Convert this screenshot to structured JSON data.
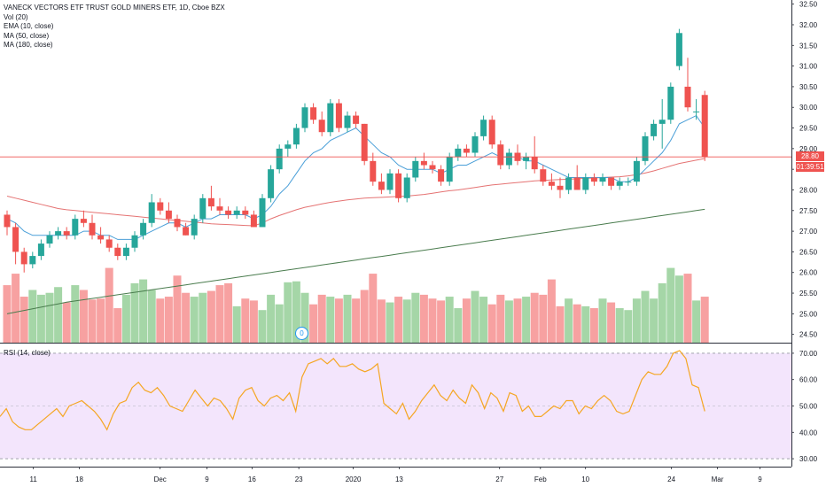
{
  "legend": {
    "title": "VANECK VECTORS ETF TRUST GOLD MINERS ETF, 1D, Cboe BZX",
    "vol": "Vol (20)",
    "ema": "EMA (10, close)",
    "ma50": "MA (50, close)",
    "ma180": "MA (180, close)",
    "rsi": "RSI (14, close)"
  },
  "price_tag": {
    "last": "28.80",
    "countdown": "01:39:51"
  },
  "volume_badge": "0",
  "colors": {
    "up": "#26a69a",
    "down": "#ef5350",
    "vol_up": "#a5d6a7",
    "vol_down": "#f7a1a1",
    "ema": "#4a9fd8",
    "ma50": "#e57373",
    "ma180": "#4a7c4e",
    "rsi_line": "#f5a623",
    "rsi_band": "#f3e5fc"
  },
  "chart_data": [
    {
      "type": "candlestick",
      "title": "VANECK VECTORS ETF TRUST GOLD MINERS ETF, 1D, Cboe BZX",
      "y_axis_ticks": [
        "24.50",
        "25.00",
        "25.50",
        "26.00",
        "26.50",
        "27.00",
        "27.50",
        "28.00",
        "28.50",
        "29.00",
        "29.50",
        "30.00",
        "30.50",
        "31.00",
        "31.50",
        "32.00",
        "32.50"
      ],
      "ylim": [
        24.3,
        32.6
      ],
      "x_axis_ticks": [
        "11",
        "18",
        "Dec",
        "9",
        "16",
        "23",
        "2020",
        "13",
        "27",
        "Feb",
        "10",
        "24",
        "Mar",
        "9"
      ],
      "candles": [
        {
          "o": 27.4,
          "h": 27.5,
          "l": 26.9,
          "c": 27.1
        },
        {
          "o": 27.1,
          "h": 27.2,
          "l": 26.2,
          "c": 26.5
        },
        {
          "o": 26.5,
          "h": 26.6,
          "l": 26.0,
          "c": 26.2
        },
        {
          "o": 26.2,
          "h": 26.5,
          "l": 26.1,
          "c": 26.4
        },
        {
          "o": 26.4,
          "h": 26.8,
          "l": 26.3,
          "c": 26.7
        },
        {
          "o": 26.7,
          "h": 27.0,
          "l": 26.6,
          "c": 26.9
        },
        {
          "o": 26.9,
          "h": 27.1,
          "l": 26.8,
          "c": 27.0
        },
        {
          "o": 27.0,
          "h": 27.1,
          "l": 26.8,
          "c": 26.9
        },
        {
          "o": 26.9,
          "h": 27.4,
          "l": 26.8,
          "c": 27.3
        },
        {
          "o": 27.3,
          "h": 27.5,
          "l": 27.1,
          "c": 27.2
        },
        {
          "o": 27.2,
          "h": 27.4,
          "l": 26.8,
          "c": 26.9
        },
        {
          "o": 26.9,
          "h": 27.1,
          "l": 26.7,
          "c": 26.8
        },
        {
          "o": 26.8,
          "h": 26.9,
          "l": 26.5,
          "c": 26.6
        },
        {
          "o": 26.6,
          "h": 26.7,
          "l": 26.3,
          "c": 26.4
        },
        {
          "o": 26.4,
          "h": 26.7,
          "l": 26.3,
          "c": 26.6
        },
        {
          "o": 26.6,
          "h": 27.0,
          "l": 26.5,
          "c": 26.9
        },
        {
          "o": 26.9,
          "h": 27.3,
          "l": 26.8,
          "c": 27.2
        },
        {
          "o": 27.2,
          "h": 27.9,
          "l": 27.1,
          "c": 27.7
        },
        {
          "o": 27.7,
          "h": 27.8,
          "l": 27.4,
          "c": 27.5
        },
        {
          "o": 27.5,
          "h": 27.7,
          "l": 27.2,
          "c": 27.3
        },
        {
          "o": 27.3,
          "h": 27.4,
          "l": 27.0,
          "c": 27.1
        },
        {
          "o": 27.1,
          "h": 27.2,
          "l": 26.9,
          "c": 26.9
        },
        {
          "o": 26.9,
          "h": 27.4,
          "l": 26.8,
          "c": 27.3
        },
        {
          "o": 27.3,
          "h": 27.9,
          "l": 27.2,
          "c": 27.8
        },
        {
          "o": 27.8,
          "h": 28.1,
          "l": 27.5,
          "c": 27.6
        },
        {
          "o": 27.6,
          "h": 27.8,
          "l": 27.4,
          "c": 27.5
        },
        {
          "o": 27.5,
          "h": 27.6,
          "l": 27.3,
          "c": 27.4
        },
        {
          "o": 27.4,
          "h": 27.6,
          "l": 27.3,
          "c": 27.5
        },
        {
          "o": 27.5,
          "h": 27.6,
          "l": 27.3,
          "c": 27.4
        },
        {
          "o": 27.4,
          "h": 27.5,
          "l": 27.1,
          "c": 27.1
        },
        {
          "o": 27.1,
          "h": 27.9,
          "l": 27.1,
          "c": 27.8
        },
        {
          "o": 27.8,
          "h": 28.6,
          "l": 27.7,
          "c": 28.5
        },
        {
          "o": 28.5,
          "h": 29.1,
          "l": 28.4,
          "c": 29.0
        },
        {
          "o": 29.0,
          "h": 29.2,
          "l": 28.8,
          "c": 29.1
        },
        {
          "o": 29.1,
          "h": 29.6,
          "l": 29.0,
          "c": 29.5
        },
        {
          "o": 29.5,
          "h": 30.1,
          "l": 29.4,
          "c": 30.0
        },
        {
          "o": 30.0,
          "h": 30.1,
          "l": 29.6,
          "c": 29.7
        },
        {
          "o": 29.7,
          "h": 29.9,
          "l": 29.3,
          "c": 29.4
        },
        {
          "o": 29.4,
          "h": 30.2,
          "l": 29.3,
          "c": 30.1
        },
        {
          "o": 30.1,
          "h": 30.2,
          "l": 29.4,
          "c": 29.5
        },
        {
          "o": 29.5,
          "h": 29.9,
          "l": 29.4,
          "c": 29.8
        },
        {
          "o": 29.8,
          "h": 29.9,
          "l": 29.5,
          "c": 29.6
        },
        {
          "o": 29.6,
          "h": 29.6,
          "l": 28.6,
          "c": 28.7
        },
        {
          "o": 28.7,
          "h": 28.9,
          "l": 28.1,
          "c": 28.2
        },
        {
          "o": 28.2,
          "h": 28.4,
          "l": 27.9,
          "c": 28.0
        },
        {
          "o": 28.0,
          "h": 28.5,
          "l": 27.9,
          "c": 28.4
        },
        {
          "o": 28.4,
          "h": 28.5,
          "l": 27.7,
          "c": 27.8
        },
        {
          "o": 27.8,
          "h": 28.4,
          "l": 27.7,
          "c": 28.3
        },
        {
          "o": 28.3,
          "h": 28.8,
          "l": 28.2,
          "c": 28.7
        },
        {
          "o": 28.7,
          "h": 28.9,
          "l": 28.5,
          "c": 28.6
        },
        {
          "o": 28.6,
          "h": 28.7,
          "l": 28.4,
          "c": 28.5
        },
        {
          "o": 28.5,
          "h": 28.6,
          "l": 28.1,
          "c": 28.2
        },
        {
          "o": 28.2,
          "h": 28.9,
          "l": 28.1,
          "c": 28.8
        },
        {
          "o": 28.8,
          "h": 29.1,
          "l": 28.7,
          "c": 29.0
        },
        {
          "o": 29.0,
          "h": 29.1,
          "l": 28.8,
          "c": 28.9
        },
        {
          "o": 28.9,
          "h": 29.4,
          "l": 28.8,
          "c": 29.3
        },
        {
          "o": 29.3,
          "h": 29.8,
          "l": 29.2,
          "c": 29.7
        },
        {
          "o": 29.7,
          "h": 29.8,
          "l": 29.0,
          "c": 29.1
        },
        {
          "o": 29.1,
          "h": 29.2,
          "l": 28.5,
          "c": 28.6
        },
        {
          "o": 28.6,
          "h": 29.0,
          "l": 28.5,
          "c": 28.9
        },
        {
          "o": 28.9,
          "h": 29.1,
          "l": 28.6,
          "c": 28.7
        },
        {
          "o": 28.7,
          "h": 28.9,
          "l": 28.5,
          "c": 28.8
        },
        {
          "o": 28.8,
          "h": 29.3,
          "l": 28.4,
          "c": 28.5
        },
        {
          "o": 28.5,
          "h": 28.6,
          "l": 28.1,
          "c": 28.2
        },
        {
          "o": 28.2,
          "h": 28.4,
          "l": 28.0,
          "c": 28.1
        },
        {
          "o": 28.1,
          "h": 28.3,
          "l": 27.8,
          "c": 28.0
        },
        {
          "o": 28.0,
          "h": 28.4,
          "l": 27.9,
          "c": 28.3
        },
        {
          "o": 28.3,
          "h": 28.6,
          "l": 28.0,
          "c": 28.0
        },
        {
          "o": 28.0,
          "h": 28.4,
          "l": 27.9,
          "c": 28.3
        },
        {
          "o": 28.3,
          "h": 28.4,
          "l": 28.1,
          "c": 28.2
        },
        {
          "o": 28.2,
          "h": 28.4,
          "l": 28.1,
          "c": 28.3
        },
        {
          "o": 28.3,
          "h": 28.3,
          "l": 28.0,
          "c": 28.1
        },
        {
          "o": 28.1,
          "h": 28.3,
          "l": 28.0,
          "c": 28.2
        },
        {
          "o": 28.2,
          "h": 28.3,
          "l": 28.1,
          "c": 28.2
        },
        {
          "o": 28.2,
          "h": 28.8,
          "l": 28.1,
          "c": 28.7
        },
        {
          "o": 28.7,
          "h": 29.4,
          "l": 28.6,
          "c": 29.3
        },
        {
          "o": 29.3,
          "h": 29.7,
          "l": 29.2,
          "c": 29.6
        },
        {
          "o": 29.6,
          "h": 30.2,
          "l": 29.0,
          "c": 29.7
        },
        {
          "o": 29.7,
          "h": 30.6,
          "l": 29.6,
          "c": 30.5
        },
        {
          "o": 31.0,
          "h": 31.9,
          "l": 30.9,
          "c": 31.8
        },
        {
          "o": 30.5,
          "h": 31.2,
          "l": 29.9,
          "c": 30.0
        },
        {
          "o": 29.9,
          "h": 30.2,
          "l": 29.7,
          "c": 29.9
        },
        {
          "o": 30.3,
          "h": 30.4,
          "l": 28.7,
          "c": 28.8
        }
      ],
      "ema_10": [
        27.3,
        27.2,
        27.0,
        26.9,
        26.9,
        26.9,
        26.9,
        26.9,
        26.9,
        27.0,
        27.0,
        26.9,
        26.9,
        26.8,
        26.8,
        26.8,
        26.9,
        27.0,
        27.1,
        27.2,
        27.2,
        27.1,
        27.2,
        27.3,
        27.3,
        27.4,
        27.4,
        27.4,
        27.4,
        27.3,
        27.4,
        27.6,
        27.9,
        28.1,
        28.4,
        28.7,
        28.9,
        29.0,
        29.2,
        29.3,
        29.4,
        29.5,
        29.3,
        29.1,
        28.9,
        28.8,
        28.6,
        28.5,
        28.5,
        28.5,
        28.5,
        28.4,
        28.5,
        28.6,
        28.6,
        28.7,
        28.8,
        28.9,
        28.8,
        28.8,
        28.8,
        28.7,
        28.7,
        28.6,
        28.5,
        28.4,
        28.3,
        28.3,
        28.3,
        28.3,
        28.3,
        28.3,
        28.2,
        28.2,
        28.3,
        28.5,
        28.7,
        28.9,
        29.2,
        29.6,
        29.7,
        29.8,
        29.5
      ],
      "ma_50": [
        27.85,
        27.8,
        27.75,
        27.7,
        27.65,
        27.6,
        27.55,
        27.52,
        27.5,
        27.48,
        27.46,
        27.44,
        27.42,
        27.4,
        27.38,
        27.36,
        27.34,
        27.32,
        27.3,
        27.28,
        27.26,
        27.24,
        27.22,
        27.2,
        27.18,
        27.17,
        27.16,
        27.15,
        27.14,
        27.13,
        27.2,
        27.3,
        27.38,
        27.45,
        27.52,
        27.58,
        27.62,
        27.66,
        27.7,
        27.73,
        27.76,
        27.78,
        27.8,
        27.81,
        27.82,
        27.83,
        27.84,
        27.85,
        27.87,
        27.89,
        27.92,
        27.95,
        27.98,
        28.0,
        28.03,
        28.06,
        28.09,
        28.12,
        28.14,
        28.16,
        28.18,
        28.2,
        28.22,
        28.23,
        28.24,
        28.25,
        28.26,
        28.27,
        28.28,
        28.29,
        28.3,
        28.31,
        28.32,
        28.34,
        28.37,
        28.41,
        28.46,
        28.52,
        28.58,
        28.64,
        28.68,
        28.72,
        28.76
      ],
      "ma_180": [
        25.0,
        25.04,
        25.08,
        25.12,
        25.16,
        25.2,
        25.24,
        25.28,
        25.31,
        25.34,
        25.37,
        25.4,
        25.43,
        25.46,
        25.49,
        25.52,
        25.55,
        25.58,
        25.61,
        25.64,
        25.67,
        25.7,
        25.73,
        25.76,
        25.79,
        25.82,
        25.85,
        25.88,
        25.91,
        25.94,
        25.97,
        26.0,
        26.03,
        26.06,
        26.09,
        26.12,
        26.15,
        26.18,
        26.21,
        26.24,
        26.27,
        26.3,
        26.33,
        26.36,
        26.39,
        26.42,
        26.45,
        26.48,
        26.51,
        26.54,
        26.57,
        26.6,
        26.63,
        26.66,
        26.69,
        26.72,
        26.75,
        26.78,
        26.81,
        26.84,
        26.87,
        26.9,
        26.93,
        26.96,
        26.99,
        27.02,
        27.05,
        27.08,
        27.11,
        27.14,
        27.17,
        27.2,
        27.23,
        27.26,
        27.29,
        27.32,
        27.35,
        27.38,
        27.41,
        27.44,
        27.47,
        27.5,
        27.53
      ],
      "volume": [
        60,
        72,
        48,
        55,
        50,
        52,
        58,
        42,
        60,
        55,
        45,
        46,
        78,
        36,
        50,
        62,
        66,
        55,
        46,
        48,
        70,
        52,
        48,
        52,
        54,
        60,
        62,
        38,
        46,
        44,
        34,
        50,
        40,
        63,
        64,
        52,
        40,
        50,
        48,
        46,
        50,
        46,
        55,
        72,
        45,
        42,
        48,
        45,
        52,
        50,
        46,
        44,
        48,
        36,
        46,
        54,
        48,
        40,
        50,
        44,
        46,
        48,
        52,
        50,
        66,
        38,
        46,
        40,
        38,
        36,
        46,
        42,
        36,
        34,
        46,
        54,
        46,
        62,
        78,
        70,
        72,
        44,
        48
      ]
    },
    {
      "type": "line",
      "title": "RSI (14, close)",
      "y_axis_ticks": [
        "30.00",
        "40.00",
        "50.00",
        "60.00",
        "70.00"
      ],
      "ylim": [
        27,
        73
      ],
      "band": [
        30,
        70
      ],
      "values": [
        46,
        49,
        44,
        42,
        41,
        41,
        43,
        45,
        47,
        49,
        46,
        50,
        51,
        52,
        50,
        48,
        45,
        41,
        47,
        51,
        52,
        57,
        59,
        56,
        55,
        57,
        54,
        50,
        49,
        48,
        52,
        56,
        53,
        50,
        53,
        52,
        49,
        45,
        53,
        56,
        57,
        52,
        50,
        53,
        54,
        52,
        55,
        48,
        61,
        66,
        67,
        68,
        66,
        68,
        65,
        65,
        66,
        64,
        63,
        64,
        66,
        51,
        49,
        47,
        51,
        45,
        48,
        52,
        55,
        58,
        54,
        52,
        56,
        53,
        51,
        58,
        55,
        49,
        55,
        53,
        48,
        55,
        54,
        48,
        50,
        46,
        46,
        48,
        50,
        49,
        52,
        52,
        47,
        50,
        49,
        52,
        54,
        52,
        48,
        47,
        48,
        54,
        60,
        63,
        62,
        62,
        65,
        70,
        71,
        68,
        58,
        57,
        48
      ]
    }
  ]
}
